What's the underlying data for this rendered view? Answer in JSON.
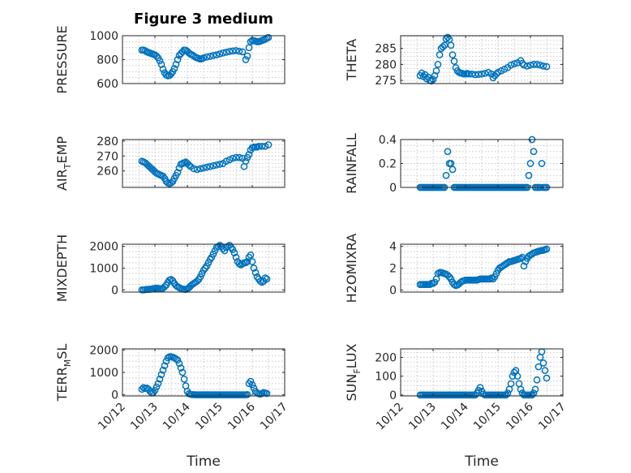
{
  "title": "Figure 3 medium",
  "xlabel": "Time",
  "xtick_labels": [
    "10/12",
    "10/13",
    "10/14",
    "10/15",
    "10/16",
    "10/17"
  ],
  "colors": {
    "marker": "#0072BD",
    "axis": "#262626",
    "grid": "#c8c8c8"
  },
  "chart_data": [
    {
      "type": "scatter",
      "id": "pressure",
      "ylabel": "PRESSURE",
      "ylabel_sub": "",
      "ylabel_rest": "",
      "xlim": [
        0,
        5
      ],
      "ylim": [
        600,
        1000
      ],
      "yticks": [
        600,
        800,
        1000
      ],
      "ytick_labels": [
        "600",
        "800",
        "1000"
      ],
      "x": [
        0.6,
        0.65,
        0.7,
        0.75,
        0.8,
        0.85,
        0.9,
        0.95,
        1.0,
        1.05,
        1.1,
        1.15,
        1.2,
        1.25,
        1.3,
        1.35,
        1.4,
        1.45,
        1.5,
        1.55,
        1.6,
        1.65,
        1.7,
        1.75,
        1.8,
        1.85,
        1.9,
        1.95,
        2.0,
        2.05,
        2.1,
        2.15,
        2.2,
        2.25,
        2.3,
        2.35,
        2.4,
        2.45,
        2.5,
        2.6,
        2.7,
        2.8,
        2.9,
        3.0,
        3.1,
        3.2,
        3.3,
        3.4,
        3.5,
        3.6,
        3.7,
        3.8,
        3.85,
        3.9,
        3.95,
        4.0,
        4.05,
        4.1,
        4.15,
        4.2,
        4.25,
        4.3,
        4.35,
        4.4,
        4.45,
        4.5
      ],
      "y": [
        880,
        880,
        875,
        865,
        860,
        855,
        850,
        845,
        840,
        830,
        815,
        790,
        760,
        720,
        690,
        672,
        665,
        668,
        680,
        700,
        725,
        760,
        800,
        835,
        850,
        865,
        880,
        878,
        870,
        855,
        845,
        840,
        830,
        820,
        815,
        810,
        805,
        808,
        815,
        822,
        828,
        835,
        840,
        848,
        856,
        862,
        868,
        872,
        876,
        870,
        865,
        800,
        830,
        900,
        950,
        960,
        958,
        955,
        950,
        950,
        955,
        960,
        965,
        970,
        980,
        985
      ]
    },
    {
      "type": "scatter",
      "id": "theta",
      "ylabel": "THETA",
      "ylabel_sub": "",
      "ylabel_rest": "",
      "xlim": [
        0,
        5
      ],
      "ylim": [
        274,
        289
      ],
      "yticks": [
        275,
        280,
        285
      ],
      "ytick_labels": [
        "275",
        "280",
        "285"
      ],
      "x": [
        0.6,
        0.65,
        0.7,
        0.75,
        0.8,
        0.85,
        0.9,
        0.95,
        1.0,
        1.05,
        1.1,
        1.15,
        1.2,
        1.25,
        1.3,
        1.35,
        1.4,
        1.45,
        1.5,
        1.55,
        1.6,
        1.65,
        1.7,
        1.75,
        1.8,
        1.85,
        1.9,
        1.95,
        2.0,
        2.05,
        2.1,
        2.2,
        2.3,
        2.4,
        2.5,
        2.6,
        2.7,
        2.8,
        2.85,
        2.9,
        2.95,
        3.0,
        3.1,
        3.2,
        3.3,
        3.4,
        3.5,
        3.6,
        3.7,
        3.75,
        3.8,
        3.9,
        4.0,
        4.1,
        4.2,
        4.3,
        4.4,
        4.5
      ],
      "y": [
        276.5,
        277.3,
        276.2,
        276.8,
        275.5,
        276,
        275,
        274.8,
        275.3,
        276.5,
        278,
        280,
        283,
        285,
        285.5,
        286,
        288,
        288.5,
        287.8,
        286,
        283,
        281,
        279,
        278,
        277.5,
        277.3,
        277.2,
        277,
        277,
        277.2,
        277,
        277,
        276.8,
        276.9,
        277,
        277.2,
        277.5,
        277,
        275.8,
        276.5,
        277,
        277.5,
        278,
        278.5,
        279,
        279.8,
        280.2,
        280.5,
        281.2,
        280.3,
        279.8,
        279.5,
        279.8,
        280,
        280,
        279.8,
        279.5,
        279.3
      ]
    },
    {
      "type": "scatter",
      "id": "air_temp",
      "ylabel": "AIR",
      "ylabel_sub": "T",
      "ylabel_rest": "EMP",
      "xlim": [
        0,
        5
      ],
      "ylim": [
        249,
        281
      ],
      "yticks": [
        260,
        270,
        280
      ],
      "ytick_labels": [
        "260",
        "270",
        "280"
      ],
      "x": [
        0.6,
        0.65,
        0.7,
        0.75,
        0.8,
        0.85,
        0.9,
        0.95,
        1.0,
        1.05,
        1.1,
        1.15,
        1.2,
        1.25,
        1.3,
        1.35,
        1.4,
        1.45,
        1.5,
        1.55,
        1.6,
        1.65,
        1.7,
        1.75,
        1.8,
        1.85,
        1.9,
        1.95,
        2.0,
        2.05,
        2.1,
        2.2,
        2.3,
        2.4,
        2.5,
        2.6,
        2.7,
        2.8,
        2.9,
        3.0,
        3.1,
        3.2,
        3.3,
        3.4,
        3.5,
        3.6,
        3.7,
        3.75,
        3.8,
        3.85,
        3.9,
        3.95,
        4.0,
        4.05,
        4.1,
        4.15,
        4.2,
        4.3,
        4.4,
        4.5
      ],
      "y": [
        266.5,
        266,
        265.5,
        264.5,
        263.5,
        262.5,
        261.5,
        260.5,
        259.5,
        258.5,
        258,
        257.5,
        257,
        256.5,
        255,
        253,
        252,
        251.5,
        252,
        253,
        255,
        257,
        259,
        262,
        264.5,
        265,
        265.5,
        266,
        265,
        264,
        263,
        261.5,
        261,
        261.5,
        262,
        262.5,
        263,
        263.5,
        264,
        264.5,
        265,
        266.5,
        267.5,
        268.5,
        269,
        269,
        268.5,
        263,
        266.5,
        269,
        271,
        274,
        275.5,
        276,
        276,
        276,
        276.5,
        276.5,
        276.5,
        277.5
      ]
    },
    {
      "type": "scatter",
      "id": "rainfall",
      "ylabel": "RAINFALL",
      "ylabel_sub": "",
      "ylabel_rest": "",
      "xlim": [
        0,
        5
      ],
      "ylim": [
        0,
        0.4
      ],
      "yticks": [
        0,
        0.2,
        0.4
      ],
      "ytick_labels": [
        "0",
        "0.2",
        "0.4"
      ],
      "x": [
        0.6,
        0.65,
        0.7,
        0.75,
        0.8,
        0.85,
        0.9,
        0.95,
        1.0,
        1.05,
        1.1,
        1.15,
        1.2,
        1.25,
        1.3,
        1.35,
        1.4,
        1.45,
        1.5,
        1.55,
        1.6,
        1.65,
        1.7,
        1.75,
        1.8,
        1.85,
        1.9,
        1.95,
        2.0,
        2.05,
        2.1,
        2.15,
        2.2,
        2.25,
        2.3,
        2.35,
        2.4,
        2.45,
        2.5,
        2.55,
        2.6,
        2.65,
        2.7,
        2.75,
        2.8,
        2.85,
        2.9,
        2.95,
        3.0,
        3.05,
        3.1,
        3.15,
        3.2,
        3.25,
        3.3,
        3.35,
        3.4,
        3.45,
        3.5,
        3.55,
        3.6,
        3.65,
        3.7,
        3.75,
        3.8,
        3.85,
        3.9,
        3.95,
        4.0,
        4.05,
        4.1,
        4.15,
        4.2,
        4.25,
        4.3,
        4.35,
        4.4,
        4.45,
        4.5
      ],
      "y": [
        0,
        0,
        0,
        0,
        0,
        0,
        0,
        0,
        0,
        0,
        0,
        0,
        0,
        0,
        0,
        0,
        0.1,
        0.3,
        0.2,
        0.2,
        0.15,
        0,
        0,
        0,
        0,
        0,
        0,
        0,
        0,
        0,
        0,
        0,
        0,
        0,
        0,
        0,
        0,
        0,
        0,
        0,
        0,
        0,
        0,
        0,
        0,
        0,
        0,
        0,
        0,
        0,
        0,
        0,
        0,
        0,
        0,
        0,
        0,
        0,
        0,
        0,
        0,
        0,
        0,
        0,
        0,
        0,
        0,
        0.1,
        0.2,
        0.4,
        0.3,
        0,
        0,
        0,
        0,
        0.2,
        0,
        0,
        0
      ]
    },
    {
      "type": "scatter",
      "id": "mixdepth",
      "ylabel": "MIXDEPTH",
      "ylabel_sub": "",
      "ylabel_rest": "",
      "xlim": [
        0,
        5
      ],
      "ylim": [
        -100,
        2100
      ],
      "yticks": [
        0,
        1000,
        2000
      ],
      "ytick_labels": [
        "0",
        "1000",
        "2000"
      ],
      "x": [
        0.6,
        0.65,
        0.7,
        0.75,
        0.8,
        0.85,
        0.9,
        0.95,
        1.0,
        1.05,
        1.1,
        1.15,
        1.2,
        1.25,
        1.3,
        1.35,
        1.4,
        1.45,
        1.5,
        1.55,
        1.6,
        1.65,
        1.7,
        1.75,
        1.8,
        1.85,
        1.9,
        1.95,
        2.0,
        2.05,
        2.1,
        2.15,
        2.2,
        2.25,
        2.3,
        2.35,
        2.4,
        2.45,
        2.5,
        2.55,
        2.6,
        2.65,
        2.7,
        2.75,
        2.8,
        2.85,
        2.9,
        2.95,
        3.0,
        3.05,
        3.1,
        3.15,
        3.2,
        3.25,
        3.3,
        3.35,
        3.4,
        3.45,
        3.5,
        3.55,
        3.6,
        3.65,
        3.7,
        3.75,
        3.8,
        3.85,
        3.9,
        3.95,
        4.0,
        4.05,
        4.1,
        4.15,
        4.2,
        4.25,
        4.3,
        4.35,
        4.4,
        4.45
      ],
      "y": [
        0,
        0,
        10,
        20,
        25,
        30,
        40,
        60,
        70,
        80,
        70,
        60,
        50,
        80,
        150,
        220,
        350,
        450,
        480,
        420,
        300,
        200,
        150,
        100,
        60,
        40,
        30,
        20,
        50,
        100,
        180,
        250,
        300,
        350,
        400,
        480,
        600,
        750,
        900,
        1000,
        1100,
        1250,
        1400,
        1500,
        1650,
        1800,
        1950,
        2000,
        2050,
        2000,
        1900,
        1800,
        1950,
        2000,
        2050,
        1950,
        1850,
        1700,
        1500,
        1300,
        1200,
        1150,
        1200,
        1250,
        1250,
        1300,
        1500,
        1600,
        1300,
        1000,
        800,
        600,
        500,
        400,
        350,
        400,
        550,
        500
      ]
    },
    {
      "type": "scatter",
      "id": "h2omixra",
      "ylabel": "H2OMIXRA",
      "ylabel_sub": "",
      "ylabel_rest": "",
      "xlim": [
        0,
        5
      ],
      "ylim": [
        -0.2,
        4.2
      ],
      "yticks": [
        0,
        2,
        4
      ],
      "ytick_labels": [
        "0",
        "2",
        "4"
      ],
      "x": [
        0.6,
        0.65,
        0.7,
        0.75,
        0.8,
        0.85,
        0.9,
        0.95,
        1.0,
        1.05,
        1.1,
        1.15,
        1.2,
        1.25,
        1.3,
        1.35,
        1.4,
        1.45,
        1.5,
        1.55,
        1.6,
        1.65,
        1.7,
        1.75,
        1.8,
        1.85,
        1.9,
        1.95,
        2.0,
        2.05,
        2.1,
        2.15,
        2.2,
        2.25,
        2.3,
        2.35,
        2.4,
        2.45,
        2.5,
        2.55,
        2.6,
        2.65,
        2.7,
        2.75,
        2.8,
        2.85,
        2.9,
        2.95,
        3.0,
        3.05,
        3.1,
        3.15,
        3.2,
        3.25,
        3.3,
        3.35,
        3.4,
        3.45,
        3.5,
        3.55,
        3.6,
        3.65,
        3.7,
        3.75,
        3.8,
        3.85,
        3.9,
        3.95,
        4.0,
        4.05,
        4.1,
        4.15,
        4.2,
        4.25,
        4.3,
        4.35,
        4.4,
        4.45,
        4.5
      ],
      "y": [
        0.5,
        0.5,
        0.5,
        0.5,
        0.5,
        0.5,
        0.5,
        0.6,
        0.6,
        0.7,
        1.0,
        1.5,
        1.6,
        1.6,
        1.55,
        1.5,
        1.45,
        1.35,
        1.2,
        1.0,
        0.7,
        0.5,
        0.4,
        0.45,
        0.55,
        0.7,
        0.8,
        0.85,
        0.9,
        0.9,
        0.9,
        0.9,
        0.9,
        0.9,
        0.9,
        0.9,
        0.95,
        1.0,
        1.0,
        1.0,
        1.0,
        1.0,
        1.0,
        1.0,
        1.1,
        1.0,
        1.2,
        1.5,
        1.8,
        2.0,
        2.1,
        2.2,
        2.3,
        2.4,
        2.5,
        2.6,
        2.6,
        2.65,
        2.7,
        2.75,
        2.8,
        2.85,
        2.9,
        3.0,
        2.2,
        2.6,
        2.9,
        3.1,
        3.2,
        3.3,
        3.4,
        3.45,
        3.5,
        3.55,
        3.6,
        3.62,
        3.65,
        3.7,
        3.75
      ]
    },
    {
      "type": "scatter",
      "id": "terr_msl",
      "ylabel": "TERR",
      "ylabel_sub": "M",
      "ylabel_rest": "SL",
      "xlim": [
        0,
        5
      ],
      "ylim": [
        -50,
        2050
      ],
      "yticks": [
        0,
        1000,
        2000
      ],
      "ytick_labels": [
        "0",
        "1000",
        "2000"
      ],
      "x": [
        0.6,
        0.65,
        0.7,
        0.75,
        0.8,
        0.85,
        0.9,
        0.95,
        1.0,
        1.05,
        1.1,
        1.15,
        1.2,
        1.25,
        1.3,
        1.35,
        1.4,
        1.45,
        1.5,
        1.55,
        1.6,
        1.65,
        1.7,
        1.75,
        1.8,
        1.85,
        1.9,
        1.95,
        2.0,
        2.05,
        2.1,
        2.15,
        2.2,
        2.25,
        2.3,
        2.35,
        2.4,
        2.45,
        2.5,
        2.55,
        2.6,
        2.65,
        2.7,
        2.75,
        2.8,
        2.85,
        2.9,
        2.95,
        3.0,
        3.05,
        3.1,
        3.15,
        3.2,
        3.25,
        3.3,
        3.35,
        3.4,
        3.45,
        3.5,
        3.55,
        3.6,
        3.65,
        3.7,
        3.75,
        3.8,
        3.85,
        3.9,
        3.95,
        4.0,
        4.05,
        4.1,
        4.15,
        4.2,
        4.25,
        4.3,
        4.35,
        4.4,
        4.45
      ],
      "y": [
        250,
        320,
        280,
        300,
        250,
        150,
        80,
        100,
        200,
        350,
        500,
        700,
        900,
        1100,
        1300,
        1500,
        1650,
        1700,
        1700,
        1680,
        1650,
        1600,
        1550,
        1400,
        1200,
        1000,
        700,
        400,
        150,
        50,
        20,
        10,
        5,
        0,
        0,
        0,
        0,
        0,
        0,
        0,
        0,
        0,
        0,
        0,
        0,
        0,
        0,
        0,
        0,
        0,
        0,
        0,
        0,
        0,
        0,
        0,
        0,
        0,
        0,
        0,
        0,
        0,
        0,
        0,
        0,
        10,
        500,
        600,
        450,
        300,
        150,
        80,
        50,
        30,
        60,
        100,
        80,
        60
      ]
    },
    {
      "type": "scatter",
      "id": "sun_flux",
      "ylabel": "SUN",
      "ylabel_sub": "F",
      "ylabel_rest": "LUX",
      "xlim": [
        0,
        5
      ],
      "ylim": [
        -5,
        245
      ],
      "yticks": [
        0,
        100,
        200
      ],
      "ytick_labels": [
        "0",
        "100",
        "200"
      ],
      "x": [
        0.6,
        0.65,
        0.7,
        0.75,
        0.8,
        0.85,
        0.9,
        0.95,
        1.0,
        1.05,
        1.1,
        1.15,
        1.2,
        1.25,
        1.3,
        1.35,
        1.4,
        1.45,
        1.5,
        1.55,
        1.6,
        1.65,
        1.7,
        1.75,
        1.8,
        1.85,
        1.9,
        1.95,
        2.0,
        2.05,
        2.1,
        2.15,
        2.2,
        2.25,
        2.3,
        2.35,
        2.4,
        2.45,
        2.5,
        2.55,
        2.6,
        2.65,
        2.7,
        2.75,
        2.8,
        2.85,
        2.9,
        2.95,
        3.0,
        3.05,
        3.1,
        3.15,
        3.2,
        3.25,
        3.3,
        3.35,
        3.4,
        3.45,
        3.5,
        3.55,
        3.6,
        3.65,
        3.7,
        3.75,
        3.8,
        3.85,
        3.9,
        3.95,
        4.0,
        4.05,
        4.1,
        4.15,
        4.2,
        4.25,
        4.3,
        4.35,
        4.4,
        4.45,
        4.5
      ],
      "y": [
        0,
        0,
        0,
        0,
        0,
        0,
        0,
        0,
        0,
        0,
        0,
        0,
        0,
        0,
        0,
        0,
        0,
        0,
        0,
        0,
        0,
        0,
        0,
        0,
        0,
        0,
        0,
        0,
        0,
        0,
        0,
        0,
        0,
        0,
        0,
        10,
        25,
        40,
        20,
        5,
        0,
        0,
        0,
        0,
        0,
        0,
        0,
        0,
        0,
        0,
        0,
        0,
        0,
        0,
        10,
        30,
        60,
        100,
        120,
        130,
        100,
        60,
        30,
        10,
        0,
        0,
        0,
        0,
        0,
        0,
        10,
        30,
        80,
        150,
        200,
        230,
        170,
        130,
        90
      ]
    }
  ]
}
